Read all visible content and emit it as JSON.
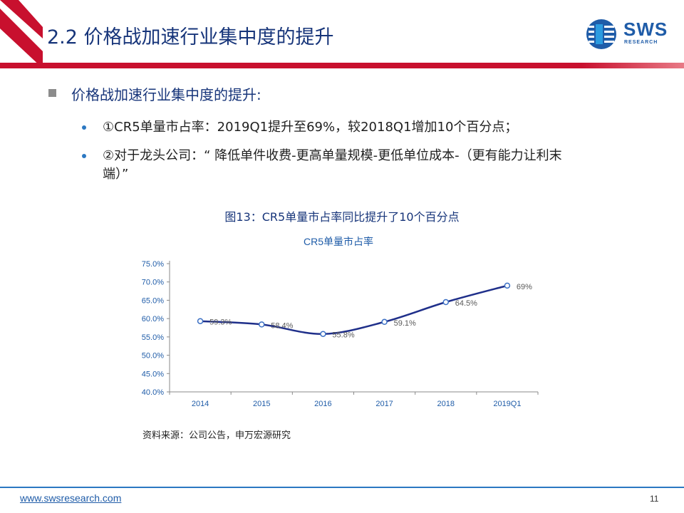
{
  "header": {
    "title": "2.2 价格战加速行业集中度的提升",
    "logo_text": "SWS",
    "logo_sub": "RESEARCH",
    "accent_color": "#c8102e",
    "brand_color": "#1f5ca8"
  },
  "body": {
    "level1": "价格战加速行业集中度的提升:",
    "bullets": [
      "①CR5单量市占率：2019Q1提升至69%，较2018Q1增加10个百分点；",
      "②对于龙头公司：“ 降低单件收费-更高单量规模-更低单位成本-（更有能力让利末",
      "端）”"
    ]
  },
  "figure": {
    "caption": "图13：CR5单量市占率同比提升了10个百分点",
    "source": "资料来源：公司公告，申万宏源研究"
  },
  "chart_data": {
    "type": "line",
    "title": "CR5单量市占率",
    "categories": [
      "2014",
      "2015",
      "2016",
      "2017",
      "2018",
      "2019Q1"
    ],
    "series": [
      {
        "values": [
          59.3,
          58.4,
          55.8,
          59.1,
          64.5,
          69.0
        ],
        "labels": [
          "59.3%",
          "58.4%",
          "55.8%",
          "59.1%",
          "64.5%",
          "69%"
        ],
        "color": "#1f2f8a"
      }
    ],
    "yticks": [
      "40.0%",
      "45.0%",
      "50.0%",
      "55.0%",
      "60.0%",
      "65.0%",
      "70.0%",
      "75.0%"
    ],
    "ylim": [
      40,
      75
    ],
    "grid": false,
    "legend": "none"
  },
  "footer": {
    "link": "www.swsresearch.com",
    "page": "11"
  }
}
